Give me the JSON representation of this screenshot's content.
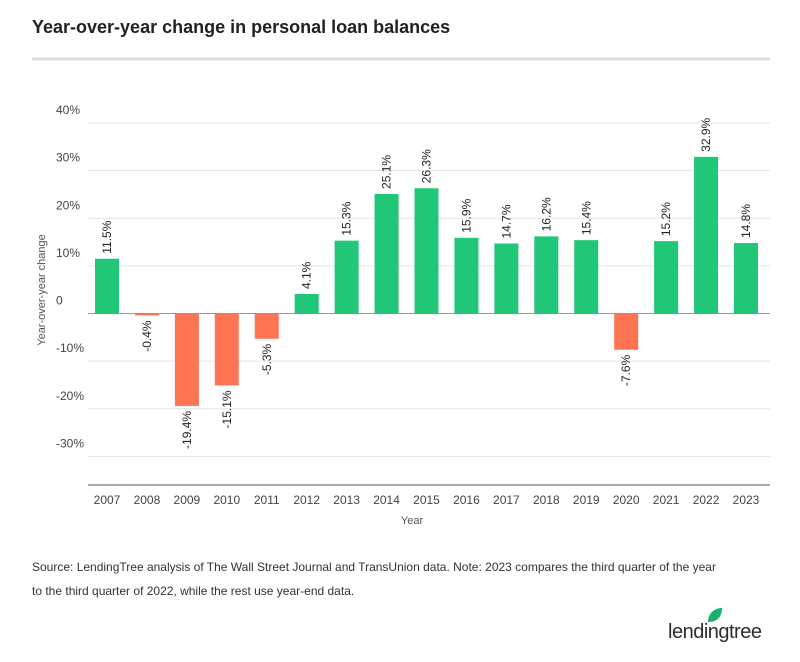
{
  "brand": "lendingtree",
  "chart_data": {
    "type": "bar",
    "title": "Year-over-year change in personal loan balances",
    "y_label": "Year-over-year change",
    "x_label": "Year",
    "source": [
      "Source: LendingTree analysis of The Wall Street Journal and TransUnion data. Note: 2023 compares the third quarter of the year",
      "to the third quarter of 2022, while the rest use year-end data."
    ],
    "categories": [
      "2007",
      "2008",
      "2009",
      "2010",
      "2011",
      "2012",
      "2013",
      "2014",
      "2015",
      "2016",
      "2017",
      "2018",
      "2019",
      "2020",
      "2021",
      "2022",
      "2023"
    ],
    "values": [
      11.5,
      -0.4,
      -19.4,
      -15.1,
      -5.3,
      4.1,
      15.3,
      25.1,
      26.3,
      15.9,
      14.7,
      16.2,
      15.4,
      -7.6,
      15.2,
      32.9,
      14.8
    ],
    "value_labels": [
      "11.5%",
      "-0.4%",
      "-19.4%",
      "-15.1%",
      "-5.3%",
      "4.1%",
      "15.3%",
      "25.1%",
      "26.3%",
      "15.9%",
      "14.7%",
      "16.2%",
      "15.4%",
      "-7.6%",
      "15.2%",
      "32.9%",
      "14.8%"
    ],
    "positive_color": "#1fc776",
    "negative_color": "#ff7452",
    "ylim": [
      -36,
      40
    ],
    "yticks": [
      {
        "value": 40,
        "label": "40%"
      },
      {
        "value": 30,
        "label": "30%"
      },
      {
        "value": 20,
        "label": "20%"
      },
      {
        "value": 10,
        "label": "10%"
      },
      0,
      {
        "value": -10,
        "label": "-10%"
      },
      {
        "value": -20,
        "label": "-20%"
      },
      {
        "value": -30,
        "label": "-30%"
      }
    ],
    "grid": true
  }
}
